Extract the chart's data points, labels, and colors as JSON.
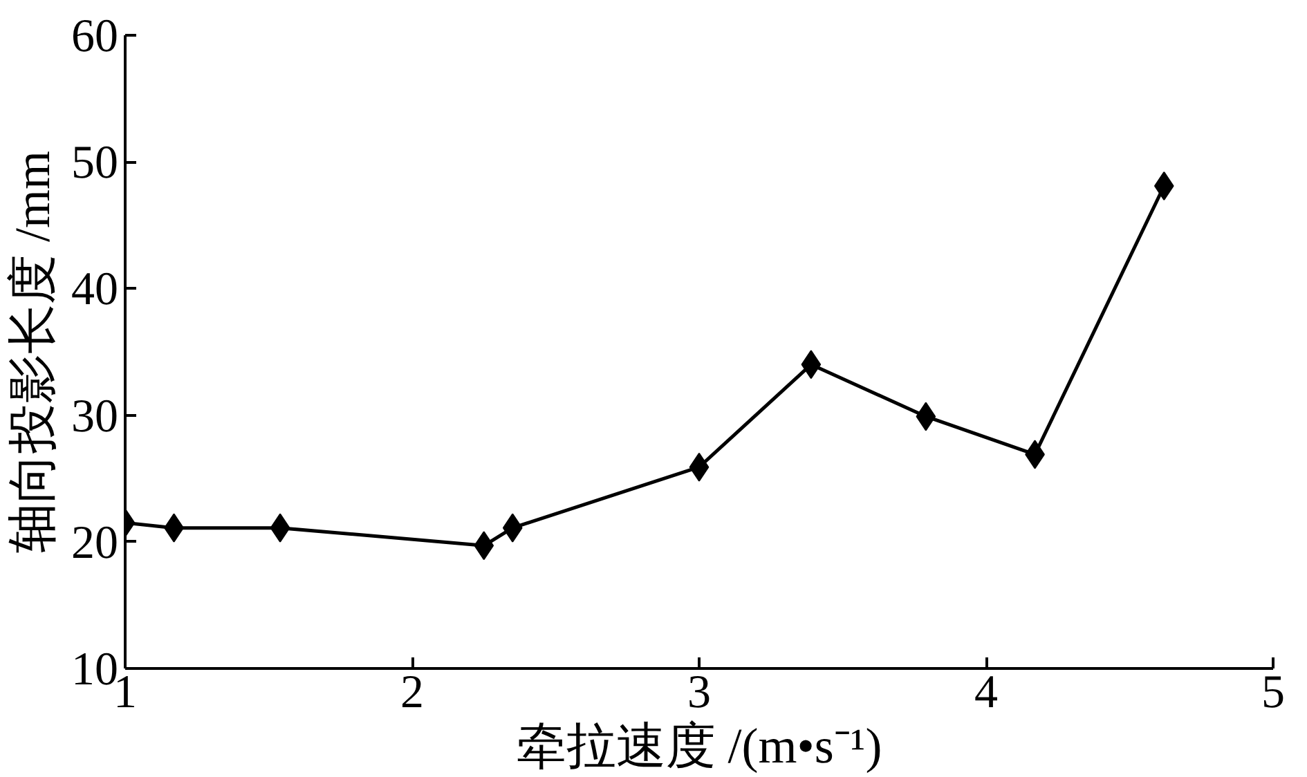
{
  "chart_data": {
    "type": "line",
    "xlabel": "牵拉速度 /(m•s⁻¹)",
    "ylabel": "轴向投影长度 /mm",
    "x": [
      1.0,
      1.17,
      1.54,
      2.25,
      2.35,
      3.0,
      3.39,
      3.79,
      4.17,
      4.62
    ],
    "series": [
      {
        "color": "#000000",
        "values": [
          21.5,
          21.1,
          21.1,
          19.7,
          21.1,
          25.9,
          34.0,
          29.9,
          26.9,
          48.1
        ]
      }
    ],
    "xlim": [
      1,
      5
    ],
    "ylim": [
      10,
      60
    ],
    "xticks": [
      1,
      2,
      3,
      4,
      5
    ],
    "yticks": [
      10,
      20,
      30,
      40,
      50,
      60
    ],
    "grid": false,
    "marker": "diamond",
    "line_style": "solid"
  }
}
